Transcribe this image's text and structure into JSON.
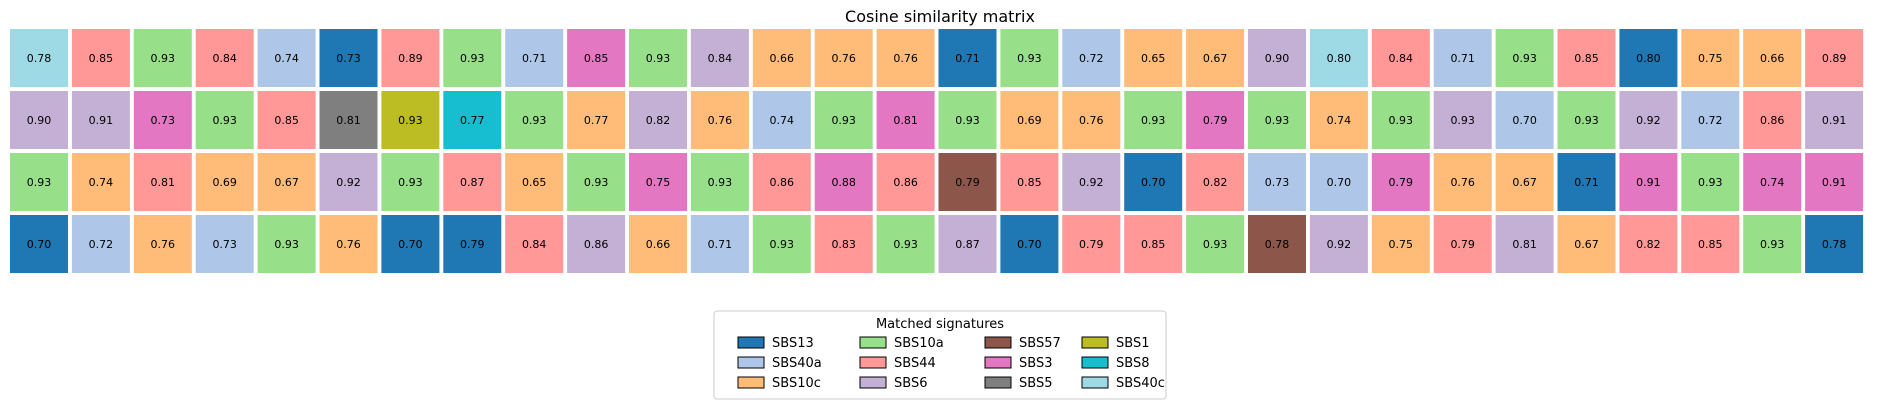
{
  "chart_data": {
    "type": "heatmap",
    "title": "Cosine similarity matrix",
    "legend_title": "Matched signatures",
    "legend_position": "bottom-center",
    "colors": {
      "SBS13": "#1f77b4",
      "SBS40a": "#aec7e8",
      "SBS10c": "#ffbb78",
      "SBS10a": "#98df8a",
      "SBS44": "#ff9896",
      "SBS6": "#c5b0d5",
      "SBS57": "#8c564b",
      "SBS3": "#e377c2",
      "SBS5": "#7f7f7f",
      "SBS1": "#bcbd22",
      "SBS8": "#17becf",
      "SBS40c": "#9edae5"
    },
    "legend": [
      "SBS13",
      "SBS40a",
      "SBS10c",
      "SBS10a",
      "SBS44",
      "SBS6",
      "SBS57",
      "SBS3",
      "SBS5",
      "SBS1",
      "SBS8",
      "SBS40c"
    ],
    "rows": [
      {
        "signatures": [
          "SBS40c",
          "SBS44",
          "SBS10a",
          "SBS44",
          "SBS40a",
          "SBS13",
          "SBS44",
          "SBS10a",
          "SBS40a",
          "SBS3",
          "SBS10a",
          "SBS6",
          "SBS10c",
          "SBS10c",
          "SBS10c",
          "SBS13",
          "SBS10a",
          "SBS40a",
          "SBS10c",
          "SBS10c",
          "SBS6",
          "SBS40c",
          "SBS44",
          "SBS40a",
          "SBS10a",
          "SBS44",
          "SBS13",
          "SBS10c",
          "SBS10c",
          "SBS44"
        ],
        "values": [
          0.78,
          0.85,
          0.93,
          0.84,
          0.74,
          0.73,
          0.89,
          0.93,
          0.71,
          0.85,
          0.93,
          0.84,
          0.66,
          0.76,
          0.76,
          0.71,
          0.93,
          0.72,
          0.65,
          0.67,
          0.9,
          0.8,
          0.84,
          0.71,
          0.93,
          0.85,
          0.8,
          0.75,
          0.66,
          0.89
        ]
      },
      {
        "signatures": [
          "SBS6",
          "SBS6",
          "SBS3",
          "SBS10a",
          "SBS44",
          "SBS5",
          "SBS1",
          "SBS8",
          "SBS10a",
          "SBS10c",
          "SBS6",
          "SBS10c",
          "SBS40a",
          "SBS10a",
          "SBS3",
          "SBS10a",
          "SBS10c",
          "SBS10c",
          "SBS10a",
          "SBS3",
          "SBS10a",
          "SBS10c",
          "SBS10a",
          "SBS6",
          "SBS40a",
          "SBS10a",
          "SBS6",
          "SBS40a",
          "SBS44",
          "SBS6"
        ],
        "values": [
          0.9,
          0.91,
          0.73,
          0.93,
          0.85,
          0.81,
          0.93,
          0.77,
          0.93,
          0.77,
          0.82,
          0.76,
          0.74,
          0.93,
          0.81,
          0.93,
          0.69,
          0.76,
          0.93,
          0.79,
          0.93,
          0.74,
          0.93,
          0.93,
          0.7,
          0.93,
          0.92,
          0.72,
          0.86,
          0.91
        ]
      },
      {
        "signatures": [
          "SBS10a",
          "SBS10c",
          "SBS44",
          "SBS10c",
          "SBS10c",
          "SBS6",
          "SBS10a",
          "SBS44",
          "SBS10c",
          "SBS10a",
          "SBS3",
          "SBS10a",
          "SBS44",
          "SBS3",
          "SBS44",
          "SBS57",
          "SBS44",
          "SBS6",
          "SBS13",
          "SBS44",
          "SBS40a",
          "SBS40a",
          "SBS3",
          "SBS10c",
          "SBS10c",
          "SBS13",
          "SBS3",
          "SBS10a",
          "SBS3",
          "SBS3"
        ],
        "values": [
          0.93,
          0.74,
          0.81,
          0.69,
          0.67,
          0.92,
          0.93,
          0.87,
          0.65,
          0.93,
          0.75,
          0.93,
          0.86,
          0.88,
          0.86,
          0.79,
          0.85,
          0.92,
          0.7,
          0.82,
          0.73,
          0.7,
          0.79,
          0.76,
          0.67,
          0.71,
          0.91,
          0.93,
          0.74,
          0.91
        ]
      },
      {
        "signatures": [
          "SBS13",
          "SBS40a",
          "SBS10c",
          "SBS40a",
          "SBS10a",
          "SBS10c",
          "SBS13",
          "SBS13",
          "SBS44",
          "SBS6",
          "SBS10c",
          "SBS40a",
          "SBS10a",
          "SBS44",
          "SBS10a",
          "SBS6",
          "SBS13",
          "SBS44",
          "SBS44",
          "SBS10a",
          "SBS57",
          "SBS6",
          "SBS10c",
          "SBS44",
          "SBS6",
          "SBS10c",
          "SBS44",
          "SBS44",
          "SBS10a",
          "SBS13"
        ],
        "values": [
          0.7,
          0.72,
          0.76,
          0.73,
          0.93,
          0.76,
          0.7,
          0.79,
          0.84,
          0.86,
          0.66,
          0.71,
          0.93,
          0.83,
          0.93,
          0.87,
          0.7,
          0.79,
          0.85,
          0.93,
          0.78,
          0.92,
          0.75,
          0.79,
          0.81,
          0.67,
          0.82,
          0.85,
          0.93,
          0.78
        ]
      }
    ]
  }
}
